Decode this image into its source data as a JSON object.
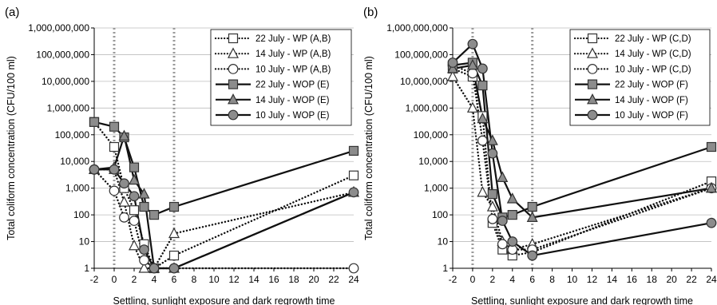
{
  "chart_data": [
    {
      "type": "line",
      "panel_label": "(a)",
      "title": "",
      "xlabel": "Settling, sunlight exposure and dark regrowth time",
      "ylabel": "Total coliform concentration (CFU/100 ml)",
      "x_scale": "linear",
      "y_scale": "log",
      "xlim": [
        -2,
        24
      ],
      "ylim": [
        1,
        1000000000
      ],
      "xticks": [
        -2,
        0,
        2,
        4,
        6,
        8,
        10,
        12,
        14,
        16,
        18,
        20,
        22,
        24
      ],
      "xtick_labels": [
        "-2",
        "0",
        "2",
        "4",
        "6",
        "8",
        "10",
        "12",
        "14",
        "16",
        "18",
        "20",
        "22",
        "24"
      ],
      "yticks": [
        1,
        10,
        100,
        1000,
        10000,
        100000,
        1000000,
        10000000,
        100000000,
        1000000000
      ],
      "ytick_labels": [
        "1",
        "10",
        "100",
        "1,000",
        "10,000",
        "100,000",
        "1,000,000",
        "10,000,000",
        "100,000,000",
        "1,000,000,000"
      ],
      "reference_lines_x": [
        0,
        6
      ],
      "grid": "horizontal",
      "legend_position": "top-right",
      "series": [
        {
          "name": "22 July - WP (A,B)",
          "marker": "square",
          "fill": "open",
          "line": "dotted",
          "x": [
            -2,
            0,
            1,
            2,
            3,
            4,
            6,
            24
          ],
          "y": [
            300000,
            35000,
            1000,
            150,
            8,
            1,
            3,
            3000
          ]
        },
        {
          "name": "14 July - WP (A,B)",
          "marker": "triangle",
          "fill": "open",
          "line": "dotted",
          "x": [
            -2,
            0,
            1,
            2,
            3,
            4,
            6,
            24
          ],
          "y": [
            5000,
            5000,
            300,
            7,
            1,
            1,
            20,
            700
          ]
        },
        {
          "name": "10 July - WP (A,B)",
          "marker": "circle",
          "fill": "open",
          "line": "dotted",
          "x": [
            -2,
            0,
            1,
            2,
            3,
            4,
            6,
            24
          ],
          "y": [
            5000,
            800,
            80,
            60,
            2,
            1,
            1,
            1
          ]
        },
        {
          "name": "22 July - WOP (E)",
          "marker": "square",
          "fill": "filled",
          "line": "solid",
          "x": [
            -2,
            0,
            1,
            2,
            3,
            4,
            6,
            24
          ],
          "y": [
            300000,
            200000,
            80000,
            6000,
            200,
            100,
            200,
            25000
          ]
        },
        {
          "name": "14 July - WOP (E)",
          "marker": "triangle",
          "fill": "filled",
          "line": "solid",
          "x": [
            -2,
            0,
            1,
            2,
            3,
            4,
            6,
            24
          ],
          "y": [
            5000,
            6000,
            90000,
            2000,
            600,
            1,
            1,
            700
          ]
        },
        {
          "name": "10 July - WOP (E)",
          "marker": "circle",
          "fill": "filled",
          "line": "solid",
          "x": [
            -2,
            0,
            1,
            2,
            3,
            4,
            6,
            24
          ],
          "y": [
            5000,
            5000,
            1500,
            500,
            5,
            1,
            1,
            700
          ]
        }
      ]
    },
    {
      "type": "line",
      "panel_label": "(b)",
      "title": "",
      "xlabel": "Settling, sunlight exposure and dark regrowth time",
      "ylabel": "Total coliform concentration (CFU/100 ml)",
      "x_scale": "linear",
      "y_scale": "log",
      "xlim": [
        -2,
        24
      ],
      "ylim": [
        1,
        1000000000
      ],
      "xticks": [
        -2,
        0,
        2,
        4,
        6,
        8,
        10,
        12,
        14,
        16,
        18,
        20,
        22,
        24
      ],
      "xtick_labels": [
        "-2",
        "0",
        "2",
        "4",
        "6",
        "8",
        "10",
        "12",
        "14",
        "16",
        "18",
        "20",
        "22",
        "24"
      ],
      "yticks": [
        1,
        10,
        100,
        1000,
        10000,
        100000,
        1000000,
        10000000,
        100000000,
        1000000000
      ],
      "ytick_labels": [
        "1",
        "10",
        "100",
        "1,000",
        "10,000",
        "100,000",
        "1,000,000",
        "10,000,000",
        "100,000,000",
        "1,000,000,000"
      ],
      "reference_lines_x": [
        0,
        6
      ],
      "grid": "horizontal",
      "legend_position": "top-right",
      "series": [
        {
          "name": "22 July - WP (C,D)",
          "marker": "square",
          "fill": "open",
          "line": "dotted",
          "x": [
            -2,
            0,
            1,
            2,
            3,
            4,
            6,
            24
          ],
          "y": [
            30000000,
            15000000,
            500000,
            50,
            5,
            3,
            4,
            1800
          ]
        },
        {
          "name": "14 July - WP (C,D)",
          "marker": "triangle",
          "fill": "open",
          "line": "dotted",
          "x": [
            -2,
            0,
            1,
            2,
            3,
            4,
            6,
            24
          ],
          "y": [
            15000000,
            1000000,
            700,
            200,
            10,
            5,
            8,
            1000
          ]
        },
        {
          "name": "10 July - WP (C,D)",
          "marker": "circle",
          "fill": "open",
          "line": "dotted",
          "x": [
            -2,
            0,
            1,
            2,
            3,
            4,
            6,
            24
          ],
          "y": [
            40000000,
            20000000,
            60000,
            70,
            8,
            5,
            5,
            1000
          ]
        },
        {
          "name": "22 July - WOP (F)",
          "marker": "square",
          "fill": "filled",
          "line": "solid",
          "x": [
            -2,
            0,
            1,
            2,
            3,
            4,
            6,
            24
          ],
          "y": [
            40000000,
            50000000,
            7000000,
            600,
            80,
            100,
            200,
            35000
          ]
        },
        {
          "name": "14 July - WOP (F)",
          "marker": "triangle",
          "fill": "filled",
          "line": "solid",
          "x": [
            -2,
            0,
            1,
            2,
            3,
            4,
            6,
            24
          ],
          "y": [
            30000000,
            40000000,
            400000,
            60000,
            2500,
            400,
            80,
            1000
          ]
        },
        {
          "name": "10 July - WOP (F)",
          "marker": "circle",
          "fill": "filled",
          "line": "solid",
          "x": [
            -2,
            0,
            1,
            2,
            3,
            4,
            6,
            24
          ],
          "y": [
            50000000,
            250000000,
            30000000,
            20000,
            60,
            10,
            3,
            50
          ]
        }
      ]
    }
  ]
}
